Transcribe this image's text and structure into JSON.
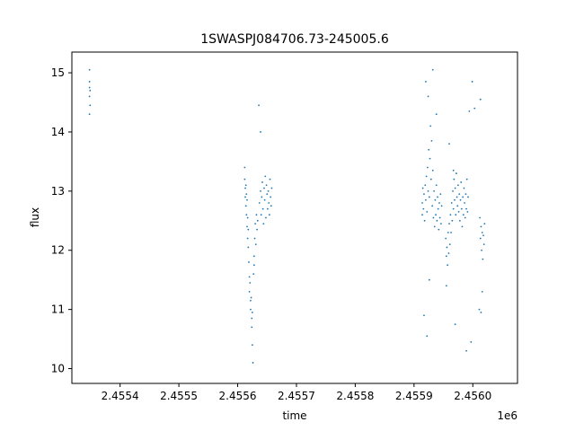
{
  "chart_data": {
    "type": "scatter",
    "title": "1SWASPJ084706.73-245005.6",
    "xlabel": "time",
    "ylabel": "flux",
    "x_offset_label": "1e6",
    "xlim": [
      2455318,
      2456076
    ],
    "ylim": [
      9.75,
      15.35
    ],
    "x_ticks": [
      2455400,
      2455500,
      2455600,
      2455700,
      2455800,
      2455900,
      2456000
    ],
    "x_tick_labels": [
      "2.4554",
      "2.4555",
      "2.4556",
      "2.4557",
      "2.4558",
      "2.4559",
      "2.4560"
    ],
    "y_ticks": [
      10,
      11,
      12,
      13,
      14,
      15
    ],
    "y_tick_labels": [
      "10",
      "11",
      "12",
      "13",
      "14",
      "15"
    ],
    "grid": false,
    "legend": "none",
    "marker_color": "#1f77b4",
    "series": [
      {
        "values": [
          [
            2455348,
            14.75
          ],
          [
            2455348,
            14.85
          ],
          [
            2455348,
            14.6
          ],
          [
            2455348,
            15.05
          ],
          [
            2455348,
            14.3
          ],
          [
            2455349,
            14.7
          ],
          [
            2455349,
            14.45
          ],
          [
            2455612,
            13.4
          ],
          [
            2455612,
            13.2
          ],
          [
            2455613,
            13.05
          ],
          [
            2455613,
            12.9
          ],
          [
            2455614,
            13.1
          ],
          [
            2455614,
            12.75
          ],
          [
            2455615,
            12.95
          ],
          [
            2455615,
            12.6
          ],
          [
            2455616,
            12.85
          ],
          [
            2455616,
            12.4
          ],
          [
            2455617,
            12.55
          ],
          [
            2455617,
            12.2
          ],
          [
            2455618,
            12.35
          ],
          [
            2455618,
            12.05
          ],
          [
            2455619,
            11.8
          ],
          [
            2455620,
            11.55
          ],
          [
            2455620,
            11.3
          ],
          [
            2455621,
            11.45
          ],
          [
            2455622,
            11.15
          ],
          [
            2455622,
            11.0
          ],
          [
            2455623,
            11.2
          ],
          [
            2455624,
            10.85
          ],
          [
            2455624,
            10.7
          ],
          [
            2455625,
            10.95
          ],
          [
            2455625,
            10.4
          ],
          [
            2455626,
            10.1
          ],
          [
            2455627,
            11.6
          ],
          [
            2455628,
            11.9
          ],
          [
            2455628,
            11.75
          ],
          [
            2455629,
            12.2
          ],
          [
            2455630,
            12.45
          ],
          [
            2455631,
            12.1
          ],
          [
            2455632,
            12.6
          ],
          [
            2455633,
            12.35
          ],
          [
            2455634,
            12.5
          ],
          [
            2455637,
            12.8
          ],
          [
            2455639,
            13.0
          ],
          [
            2455640,
            12.6
          ],
          [
            2455641,
            12.9
          ],
          [
            2455642,
            13.15
          ],
          [
            2455643,
            12.7
          ],
          [
            2455644,
            12.45
          ],
          [
            2455645,
            13.05
          ],
          [
            2455646,
            12.85
          ],
          [
            2455647,
            13.25
          ],
          [
            2455648,
            12.55
          ],
          [
            2455649,
            13.1
          ],
          [
            2455650,
            12.95
          ],
          [
            2455651,
            12.7
          ],
          [
            2455652,
            13.0
          ],
          [
            2455653,
            12.8
          ],
          [
            2455654,
            12.6
          ],
          [
            2455655,
            13.2
          ],
          [
            2455656,
            12.9
          ],
          [
            2455657,
            12.75
          ],
          [
            2455658,
            13.05
          ],
          [
            2455636,
            14.45
          ],
          [
            2455639,
            14.0
          ],
          [
            2455914,
            12.8
          ],
          [
            2455914,
            12.6
          ],
          [
            2455915,
            13.05
          ],
          [
            2455916,
            12.7
          ],
          [
            2455917,
            12.95
          ],
          [
            2455918,
            12.5
          ],
          [
            2455919,
            13.1
          ],
          [
            2455920,
            12.85
          ],
          [
            2455921,
            13.25
          ],
          [
            2455922,
            12.65
          ],
          [
            2455923,
            13.4
          ],
          [
            2455924,
            13.0
          ],
          [
            2455925,
            13.7
          ],
          [
            2455926,
            12.9
          ],
          [
            2455927,
            13.55
          ],
          [
            2455928,
            14.1
          ],
          [
            2455929,
            13.2
          ],
          [
            2455930,
            13.85
          ],
          [
            2455931,
            12.75
          ],
          [
            2455932,
            13.35
          ],
          [
            2455933,
            12.55
          ],
          [
            2455934,
            13.0
          ],
          [
            2455935,
            12.4
          ],
          [
            2455936,
            12.85
          ],
          [
            2455937,
            12.6
          ],
          [
            2455938,
            13.1
          ],
          [
            2455939,
            12.5
          ],
          [
            2455940,
            12.9
          ],
          [
            2455941,
            12.7
          ],
          [
            2455942,
            12.35
          ],
          [
            2455943,
            12.8
          ],
          [
            2455944,
            12.55
          ],
          [
            2455945,
            12.95
          ],
          [
            2455946,
            12.45
          ],
          [
            2455947,
            12.75
          ],
          [
            2455920,
            14.85
          ],
          [
            2455924,
            14.6
          ],
          [
            2455932,
            15.05
          ],
          [
            2455938,
            14.3
          ],
          [
            2455922,
            10.55
          ],
          [
            2455917,
            10.9
          ],
          [
            2455926,
            11.5
          ],
          [
            2455954,
            12.2
          ],
          [
            2455955,
            11.9
          ],
          [
            2455956,
            12.05
          ],
          [
            2455957,
            11.75
          ],
          [
            2455958,
            12.3
          ],
          [
            2455959,
            11.95
          ],
          [
            2455960,
            12.45
          ],
          [
            2455961,
            12.1
          ],
          [
            2455962,
            12.6
          ],
          [
            2455963,
            12.3
          ],
          [
            2455964,
            12.8
          ],
          [
            2455965,
            12.5
          ],
          [
            2455966,
            13.0
          ],
          [
            2455967,
            12.7
          ],
          [
            2455968,
            13.2
          ],
          [
            2455969,
            12.85
          ],
          [
            2455970,
            13.05
          ],
          [
            2455971,
            12.6
          ],
          [
            2455972,
            13.3
          ],
          [
            2455973,
            12.9
          ],
          [
            2455974,
            12.75
          ],
          [
            2455975,
            13.1
          ],
          [
            2455976,
            12.65
          ],
          [
            2455977,
            12.95
          ],
          [
            2455978,
            12.5
          ],
          [
            2455979,
            12.85
          ],
          [
            2455980,
            13.15
          ],
          [
            2455981,
            12.7
          ],
          [
            2455982,
            12.4
          ],
          [
            2455983,
            12.9
          ],
          [
            2455984,
            12.6
          ],
          [
            2455985,
            13.05
          ],
          [
            2455986,
            12.8
          ],
          [
            2455987,
            12.55
          ],
          [
            2455988,
            12.95
          ],
          [
            2455989,
            12.7
          ],
          [
            2455990,
            13.2
          ],
          [
            2455991,
            12.65
          ],
          [
            2455992,
            12.9
          ],
          [
            2455960,
            13.8
          ],
          [
            2455967,
            13.35
          ],
          [
            2455955,
            11.4
          ],
          [
            2455970,
            10.75
          ],
          [
            2455994,
            14.35
          ],
          [
            2455999,
            14.85
          ],
          [
            2456003,
            14.4
          ],
          [
            2455997,
            10.45
          ],
          [
            2455989,
            10.3
          ],
          [
            2456011,
            11.0
          ],
          [
            2456012,
            12.55
          ],
          [
            2456013,
            12.2
          ],
          [
            2456014,
            12.4
          ],
          [
            2456015,
            12.0
          ],
          [
            2456016,
            12.3
          ],
          [
            2456017,
            11.85
          ],
          [
            2456018,
            12.25
          ],
          [
            2456019,
            12.1
          ],
          [
            2456020,
            12.45
          ],
          [
            2456013,
            14.55
          ],
          [
            2456016,
            11.3
          ],
          [
            2456014,
            10.95
          ]
        ]
      }
    ]
  }
}
